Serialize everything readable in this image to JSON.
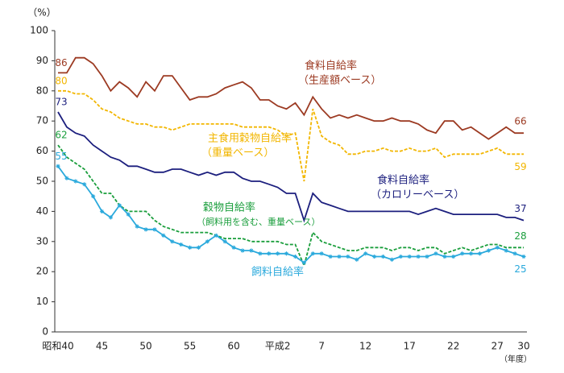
{
  "chart_data": {
    "type": "line",
    "y_axis_label": "（%）",
    "x_axis_label": "（年度）",
    "categories": [
      "昭和40",
      null,
      null,
      null,
      null,
      "45",
      null,
      null,
      null,
      null,
      "50",
      null,
      null,
      null,
      null,
      "55",
      null,
      null,
      null,
      null,
      "60",
      null,
      null,
      null,
      null,
      "平成2",
      null,
      null,
      null,
      null,
      "7",
      null,
      null,
      null,
      null,
      "12",
      null,
      null,
      null,
      null,
      "17",
      null,
      null,
      null,
      null,
      "22",
      null,
      null,
      null,
      null,
      "27",
      null,
      null,
      "30"
    ],
    "ylim": [
      0,
      100
    ],
    "yticks": [
      0,
      10,
      20,
      30,
      40,
      50,
      60,
      70,
      80,
      90,
      100
    ],
    "series": [
      {
        "name": "食料自給率",
        "subname": "（生産額ベース）",
        "color": "#9c3a22",
        "dashed": false,
        "values": [
          86,
          86,
          91,
          91,
          89,
          85,
          80,
          83,
          81,
          78,
          83,
          80,
          85,
          85,
          81,
          77,
          78,
          78,
          79,
          81,
          82,
          83,
          81,
          77,
          77,
          75,
          74,
          76,
          72,
          78,
          74,
          71,
          72,
          71,
          72,
          71,
          70,
          70,
          71,
          70,
          70,
          69,
          67,
          66,
          70,
          70,
          67,
          68,
          66,
          64,
          66,
          68,
          66,
          66
        ]
      },
      {
        "name": "主食用穀物自給率",
        "subname": "（重量ベース）",
        "color": "#f2b600",
        "dashed": true,
        "values": [
          80,
          80,
          79,
          79,
          77,
          74,
          73,
          71,
          70,
          69,
          69,
          68,
          68,
          67,
          68,
          69,
          69,
          69,
          69,
          69,
          69,
          68,
          68,
          68,
          68,
          67,
          65,
          66,
          50,
          74,
          65,
          63,
          62,
          59,
          59,
          60,
          60,
          61,
          60,
          60,
          61,
          60,
          60,
          61,
          58,
          59,
          59,
          59,
          59,
          60,
          61,
          59,
          59,
          59
        ]
      },
      {
        "name": "食料自給率",
        "subname": "（カロリーベース）",
        "color": "#1c1f7e",
        "dashed": false,
        "values": [
          73,
          68,
          66,
          65,
          62,
          60,
          58,
          57,
          55,
          55,
          54,
          53,
          53,
          54,
          54,
          53,
          52,
          53,
          52,
          53,
          53,
          51,
          50,
          50,
          49,
          48,
          46,
          46,
          37,
          46,
          43,
          42,
          41,
          40,
          40,
          40,
          40,
          40,
          40,
          40,
          40,
          39,
          40,
          41,
          40,
          39,
          39,
          39,
          39,
          39,
          39,
          38,
          38,
          37
        ]
      },
      {
        "name": "穀物自給率",
        "subname": "（飼料用を含む、重量ベース）",
        "color": "#1a9e3c",
        "dashed": true,
        "values": [
          62,
          58,
          56,
          54,
          50,
          46,
          46,
          42,
          40,
          40,
          40,
          37,
          35,
          34,
          33,
          33,
          33,
          33,
          32,
          31,
          31,
          31,
          30,
          30,
          30,
          30,
          29,
          29,
          22,
          33,
          30,
          29,
          28,
          27,
          27,
          28,
          28,
          28,
          27,
          28,
          28,
          27,
          28,
          28,
          26,
          27,
          28,
          27,
          28,
          29,
          29,
          28,
          28,
          28
        ]
      },
      {
        "name": "飼料自給率",
        "color": "#2aa9dc",
        "dashed": false,
        "marker": "star",
        "values": [
          55,
          51,
          50,
          49,
          45,
          40,
          38,
          42,
          39,
          35,
          34,
          34,
          32,
          30,
          29,
          28,
          28,
          30,
          32,
          30,
          28,
          27,
          27,
          26,
          26,
          26,
          26,
          25,
          23,
          26,
          26,
          25,
          25,
          25,
          24,
          26,
          25,
          25,
          24,
          25,
          25,
          25,
          25,
          26,
          25,
          25,
          26,
          26,
          26,
          27,
          28,
          27,
          26,
          25
        ]
      }
    ]
  }
}
